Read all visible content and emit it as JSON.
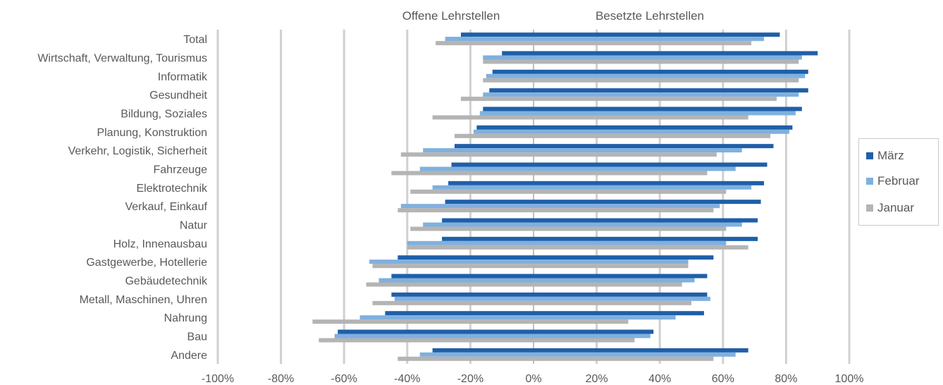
{
  "chart_data": {
    "type": "bar",
    "orientation": "horizontal",
    "annotations": [
      "Offene Lehrstellen",
      "Besetzte Lehrstellen"
    ],
    "categories": [
      "Total",
      "Wirtschaft, Verwaltung, Tourismus",
      "Informatik",
      "Gesundheit",
      "Bildung, Soziales",
      "Planung, Konstruktion",
      "Verkehr, Logistik, Sicherheit",
      "Fahrzeuge",
      "Elektrotechnik",
      "Verkauf, Einkauf",
      "Natur",
      "Holz, Innenausbau",
      "Gastgewerbe, Hotellerie",
      "Gebäudetechnik",
      "Metall, Maschinen, Uhren",
      "Nahrung",
      "Bau",
      "Andere"
    ],
    "series": [
      {
        "name": "März",
        "color": "#1f5fa8",
        "offene": [
          -23,
          -10,
          -13,
          -14,
          -16,
          -18,
          -25,
          -26,
          -27,
          -28,
          -29,
          -29,
          -43,
          -45,
          -45,
          -47,
          -62,
          -32
        ],
        "besetzte": [
          78,
          90,
          87,
          87,
          85,
          82,
          76,
          74,
          73,
          72,
          71,
          71,
          57,
          55,
          55,
          54,
          38,
          68
        ]
      },
      {
        "name": "Februar",
        "color": "#7fb0df",
        "offene": [
          -28,
          -16,
          -15,
          -16,
          -17,
          -19,
          -35,
          -36,
          -32,
          -42,
          -35,
          -40,
          -52,
          -49,
          -44,
          -55,
          -63,
          -36
        ],
        "besetzte": [
          73,
          85,
          86,
          84,
          83,
          81,
          66,
          64,
          69,
          59,
          66,
          61,
          49,
          51,
          56,
          45,
          37,
          64
        ]
      },
      {
        "name": "Januar",
        "color": "#b4b4b4",
        "offene": [
          -31,
          -16,
          -16,
          -23,
          -32,
          -25,
          -42,
          -45,
          -39,
          -43,
          -39,
          -40,
          -51,
          -53,
          -51,
          -70,
          -68,
          -43
        ],
        "besetzte": [
          69,
          84,
          84,
          77,
          68,
          75,
          58,
          55,
          61,
          57,
          61,
          68,
          49,
          47,
          50,
          30,
          32,
          57
        ]
      }
    ],
    "xlim": [
      -100,
      100
    ],
    "xticks": [
      -100,
      -80,
      -60,
      -40,
      -20,
      0,
      20,
      40,
      60,
      80,
      100
    ],
    "xtick_labels": [
      "-100%",
      "-80%",
      "-60%",
      "-40%",
      "-20%",
      "0%",
      "20%",
      "40%",
      "60%",
      "80%",
      "100%"
    ],
    "grid": true,
    "legend": "right"
  }
}
